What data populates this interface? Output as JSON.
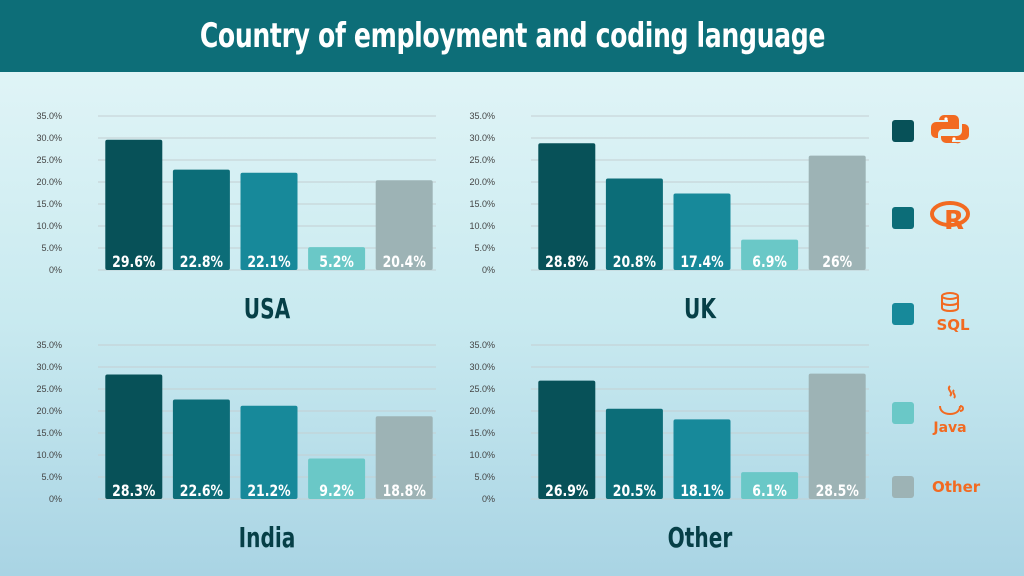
{
  "header": {
    "title": "Country of employment and coding language"
  },
  "colors": {
    "header_bg": "#0d6e78",
    "icon_accent": "#f26a21",
    "series": [
      "#075158",
      "#0c6d78",
      "#17899a",
      "#6ac8c7",
      "#9db3b5"
    ]
  },
  "legend": {
    "items": [
      {
        "icon": "python-logo-icon",
        "label": ""
      },
      {
        "icon": "r-logo-icon",
        "label": "R"
      },
      {
        "icon": "sql-database-icon",
        "label": "SQL"
      },
      {
        "icon": "java-logo-icon",
        "label": "Java"
      },
      {
        "icon": "other-text",
        "label": "Other"
      }
    ]
  },
  "chart_data": [
    {
      "type": "bar",
      "title": "USA",
      "categories": [
        "Python",
        "R",
        "SQL",
        "Java",
        "Other"
      ],
      "values": [
        29.6,
        22.8,
        22.1,
        5.2,
        20.4
      ],
      "labels": [
        "29.6%",
        "22.8%",
        "22.1%",
        "5.2%",
        "20.4%"
      ],
      "ylim": [
        0,
        35
      ],
      "yticks": [
        "0%",
        "5.0%",
        "10.0%",
        "15.0%",
        "20.0%",
        "25.0%",
        "30.0%",
        "35.0%"
      ],
      "grid": true
    },
    {
      "type": "bar",
      "title": "UK",
      "categories": [
        "Python",
        "R",
        "SQL",
        "Java",
        "Other"
      ],
      "values": [
        28.8,
        20.8,
        17.4,
        6.9,
        26
      ],
      "labels": [
        "28.8%",
        "20.8%",
        "17.4%",
        "6.9%",
        "26%"
      ],
      "ylim": [
        0,
        35
      ],
      "yticks": [
        "0%",
        "5.0%",
        "10.0%",
        "15.0%",
        "20.0%",
        "25.0%",
        "30.0%",
        "35.0%"
      ],
      "grid": true
    },
    {
      "type": "bar",
      "title": "India",
      "categories": [
        "Python",
        "R",
        "SQL",
        "Java",
        "Other"
      ],
      "values": [
        28.3,
        22.6,
        21.2,
        9.2,
        18.8
      ],
      "labels": [
        "28.3%",
        "22.6%",
        "21.2%",
        "9.2%",
        "18.8%"
      ],
      "ylim": [
        0,
        35
      ],
      "yticks": [
        "0%",
        "5.0%",
        "10.0%",
        "15.0%",
        "20.0%",
        "25.0%",
        "30.0%",
        "35.0%"
      ],
      "grid": true
    },
    {
      "type": "bar",
      "title": "Other",
      "categories": [
        "Python",
        "R",
        "SQL",
        "Java",
        "Other"
      ],
      "values": [
        26.9,
        20.5,
        18.1,
        6.1,
        28.5
      ],
      "labels": [
        "26.9%",
        "20.5%",
        "18.1%",
        "6.1%",
        "28.5%"
      ],
      "ylim": [
        0,
        35
      ],
      "yticks": [
        "0%",
        "5.0%",
        "10.0%",
        "15.0%",
        "20.0%",
        "25.0%",
        "30.0%",
        "35.0%"
      ],
      "grid": true
    }
  ]
}
